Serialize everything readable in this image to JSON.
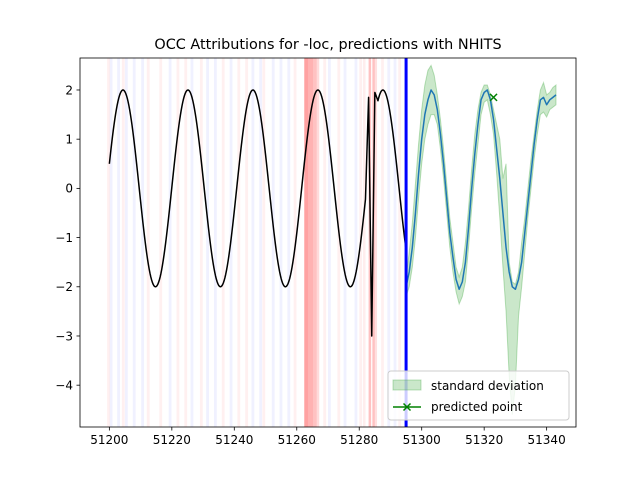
{
  "chart_data": {
    "type": "line",
    "title": "OCC Attributions for -loc, predictions with NHITS",
    "xlabel": "",
    "ylabel": "",
    "xlim": [
      51190.6,
      51349.4
    ],
    "ylim": [
      -4.85,
      2.65
    ],
    "x_ticks": [
      51200,
      51220,
      51240,
      51260,
      51280,
      51300,
      51320,
      51340
    ],
    "y_ticks": [
      2,
      1,
      0,
      -1,
      -2,
      -3,
      -4
    ],
    "y_tick_labels": [
      "2",
      "1",
      "0",
      "−1",
      "−2",
      "−3",
      "−4"
    ],
    "grid": false,
    "legend_position": "lower right",
    "forecast_start": 51295,
    "history": {
      "color": "#000000",
      "x_start": 51200,
      "x_end": 51295,
      "period": 20.8,
      "amplitude": 2.0,
      "y_first": 0.5,
      "anomalies": [
        {
          "x": 51283,
          "y": 1.85
        },
        {
          "x": 51284,
          "y": -3.0
        },
        {
          "x": 51285,
          "y": 1.95
        }
      ]
    },
    "forecast": {
      "color": "#1f77b4",
      "x": [
        51295,
        51296,
        51297,
        51298,
        51299,
        51300,
        51301,
        51302,
        51303,
        51304,
        51305,
        51306,
        51307,
        51308,
        51309,
        51310,
        51311,
        51312,
        51313,
        51314,
        51315,
        51316,
        51317,
        51318,
        51319,
        51320,
        51321,
        51322,
        51323,
        51324,
        51325,
        51326,
        51327,
        51328,
        51329,
        51330,
        51331,
        51332,
        51333,
        51334,
        51335,
        51336,
        51337,
        51338,
        51339,
        51340,
        51341,
        51342,
        51343
      ],
      "y": [
        -2.0,
        -1.7,
        -1.2,
        -0.5,
        0.3,
        1.0,
        1.5,
        1.8,
        2.0,
        1.9,
        1.6,
        1.1,
        0.5,
        -0.2,
        -0.9,
        -1.4,
        -1.85,
        -2.05,
        -1.9,
        -1.5,
        -0.8,
        0.0,
        0.7,
        1.3,
        1.8,
        1.95,
        2.0,
        1.8,
        1.4,
        0.8,
        0.2,
        -0.5,
        -1.2,
        -1.7,
        -2.0,
        -2.05,
        -1.85,
        -1.5,
        -0.9,
        -0.3,
        0.3,
        0.9,
        1.4,
        1.8,
        1.85,
        1.7,
        1.8,
        1.85,
        1.9
      ],
      "std_upper": [
        -1.8,
        -1.3,
        -0.7,
        0.1,
        0.9,
        1.6,
        2.1,
        2.4,
        2.5,
        2.3,
        1.9,
        1.4,
        0.8,
        0.1,
        -0.6,
        -1.1,
        -1.6,
        -1.8,
        -1.6,
        -1.1,
        -0.4,
        0.4,
        1.1,
        1.6,
        1.95,
        2.1,
        2.1,
        1.9,
        1.6,
        1.3,
        1.0,
        0.2,
        0.5,
        -1.5,
        -1.9,
        -1.95,
        -1.7,
        -1.1,
        -0.6,
        0.0,
        0.6,
        1.1,
        1.6,
        2.0,
        2.15,
        1.9,
        1.95,
        2.05,
        2.1
      ],
      "std_lower": [
        -2.2,
        -2.0,
        -1.6,
        -1.0,
        -0.2,
        0.5,
        1.0,
        1.3,
        1.5,
        1.5,
        1.3,
        0.8,
        0.2,
        -0.5,
        -1.2,
        -1.7,
        -2.1,
        -2.35,
        -2.2,
        -1.9,
        -1.2,
        -0.4,
        0.3,
        0.9,
        1.5,
        1.75,
        1.8,
        1.5,
        1.1,
        0.3,
        -0.6,
        -1.6,
        -2.5,
        -3.8,
        -4.6,
        -4.0,
        -2.6,
        -2.0,
        -1.3,
        -0.6,
        0.0,
        0.6,
        1.1,
        1.5,
        1.55,
        1.45,
        1.6,
        1.65,
        1.7
      ]
    },
    "predicted_point": {
      "x": 51323,
      "y": 1.85,
      "color": "#008000"
    },
    "attribution_bands": [
      {
        "x": 51262.4,
        "width": 1.2,
        "color": "#ff5555",
        "opacity": 0.55
      },
      {
        "x": 51263.6,
        "width": 1.6,
        "color": "#ff6666",
        "opacity": 0.5
      },
      {
        "x": 51265.2,
        "width": 1.2,
        "color": "#ff7777",
        "opacity": 0.45
      },
      {
        "x": 51266.4,
        "width": 0.8,
        "color": "#ff9999",
        "opacity": 0.35
      },
      {
        "x": 51283.0,
        "width": 0.8,
        "color": "#ff7777",
        "opacity": 0.45
      },
      {
        "x": 51284.2,
        "width": 0.8,
        "color": "#ff7777",
        "opacity": 0.45
      },
      {
        "x": 51285.0,
        "width": 0.7,
        "color": "#ff9999",
        "opacity": 0.3
      },
      {
        "x": 51281.2,
        "width": 0.8,
        "color": "#ffaaaa",
        "opacity": 0.2
      }
    ],
    "light_bands": {
      "blue": [
        51200.1,
        51202.5,
        51205.0,
        51207.5,
        51210.2,
        51219.0,
        51226.0,
        51231.0,
        51233.5,
        51238.5,
        51245.5,
        51248.0,
        51252.0,
        51254.5,
        51257.0,
        51270.0,
        51275.0,
        51278.5,
        51289.0,
        51291.0
      ],
      "red": [
        51199.3,
        51204.0,
        51212.0,
        51216.0,
        51221.5,
        51224.0,
        51229.0,
        51236.0,
        51241.0,
        51243.5,
        51249.0,
        51259.0,
        51268.5,
        51273.0,
        51280.0,
        51287.0,
        51292.5
      ]
    },
    "series": [
      {
        "name": "standard deviation",
        "color": "#2ca02c"
      },
      {
        "name": "predicted point",
        "color": "#008000"
      }
    ]
  }
}
